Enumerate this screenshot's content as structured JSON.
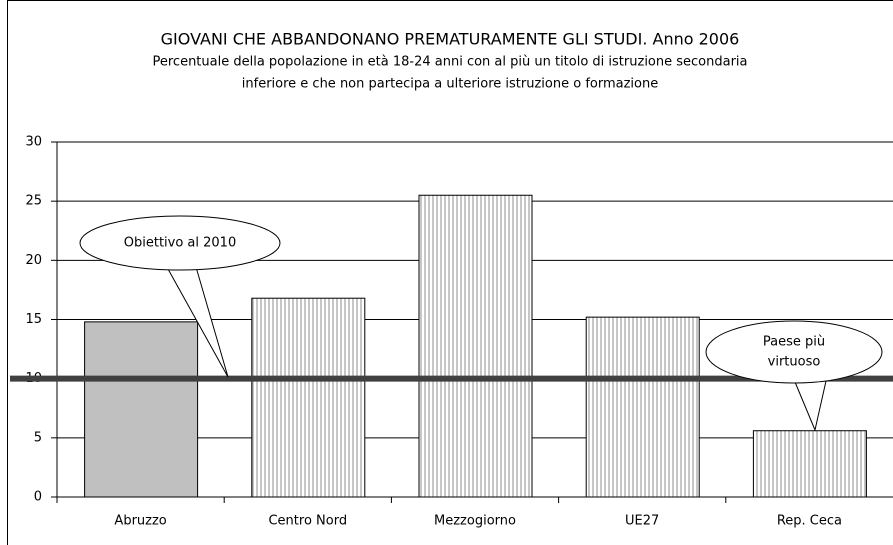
{
  "chart_data": {
    "type": "bar",
    "title": "GIOVANI CHE ABBANDONANO PREMATURAMENTE GLI STUDI. Anno 2006",
    "subtitle": [
      "Percentuale della popolazione in età 18-24 anni con al più un titolo di istruzione secondaria",
      "inferiore e che non partecipa a ulteriore istruzione o formazione"
    ],
    "categories": [
      "Abruzzo",
      "Centro Nord",
      "Mezzogiorno",
      "UE27",
      "Rep. Ceca"
    ],
    "values": [
      14.8,
      16.8,
      25.5,
      15.2,
      5.6
    ],
    "colors": [
      "#c0c0c0",
      "#8c8c8c",
      "#8c8c8c",
      "#8c8c8c",
      "#8c8c8c"
    ],
    "patterns": [
      false,
      true,
      true,
      true,
      true
    ],
    "ylim": [
      0,
      30
    ],
    "yticks": [
      0,
      5,
      10,
      15,
      20,
      25,
      30
    ],
    "grid": true,
    "reference_line": {
      "value": 10,
      "color": "#404040"
    },
    "annotations": [
      {
        "lines": [
          "Obiettivo al 2010"
        ]
      },
      {
        "lines": [
          "Paese più",
          "virtuoso"
        ]
      }
    ]
  }
}
